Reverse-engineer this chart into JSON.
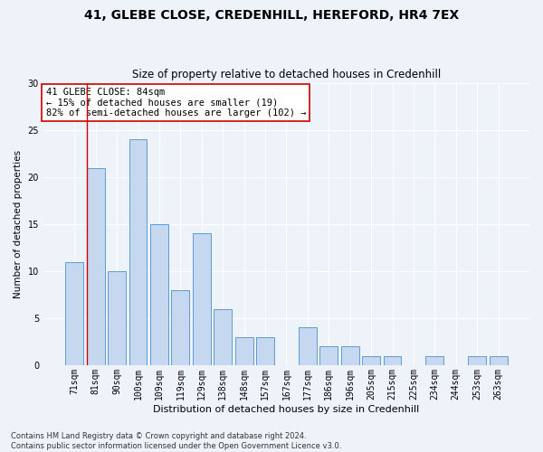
{
  "title1": "41, GLEBE CLOSE, CREDENHILL, HEREFORD, HR4 7EX",
  "title2": "Size of property relative to detached houses in Credenhill",
  "xlabel": "Distribution of detached houses by size in Credenhill",
  "ylabel": "Number of detached properties",
  "categories": [
    "71sqm",
    "81sqm",
    "90sqm",
    "100sqm",
    "109sqm",
    "119sqm",
    "129sqm",
    "138sqm",
    "148sqm",
    "157sqm",
    "167sqm",
    "177sqm",
    "186sqm",
    "196sqm",
    "205sqm",
    "215sqm",
    "225sqm",
    "234sqm",
    "244sqm",
    "253sqm",
    "263sqm"
  ],
  "values": [
    11,
    21,
    10,
    24,
    15,
    8,
    14,
    6,
    3,
    3,
    0,
    4,
    2,
    2,
    1,
    1,
    0,
    1,
    0,
    1,
    1
  ],
  "bar_color": "#c5d8f0",
  "bar_edge_color": "#5b9bd5",
  "ylim": [
    0,
    30
  ],
  "yticks": [
    0,
    5,
    10,
    15,
    20,
    25,
    30
  ],
  "annotation_box_text": "41 GLEBE CLOSE: 84sqm\n← 15% of detached houses are smaller (19)\n82% of semi-detached houses are larger (102) →",
  "annotation_box_color": "#ffffff",
  "annotation_box_edge_color": "#cc0000",
  "vline_x_index": 1,
  "vline_color": "#cc0000",
  "background_color": "#eef2f9",
  "footer_text": "Contains HM Land Registry data © Crown copyright and database right 2024.\nContains public sector information licensed under the Open Government Licence v3.0.",
  "title1_fontsize": 10,
  "title2_fontsize": 8.5,
  "xlabel_fontsize": 8,
  "ylabel_fontsize": 7.5,
  "tick_fontsize": 7,
  "annotation_fontsize": 7.5,
  "footer_fontsize": 6
}
